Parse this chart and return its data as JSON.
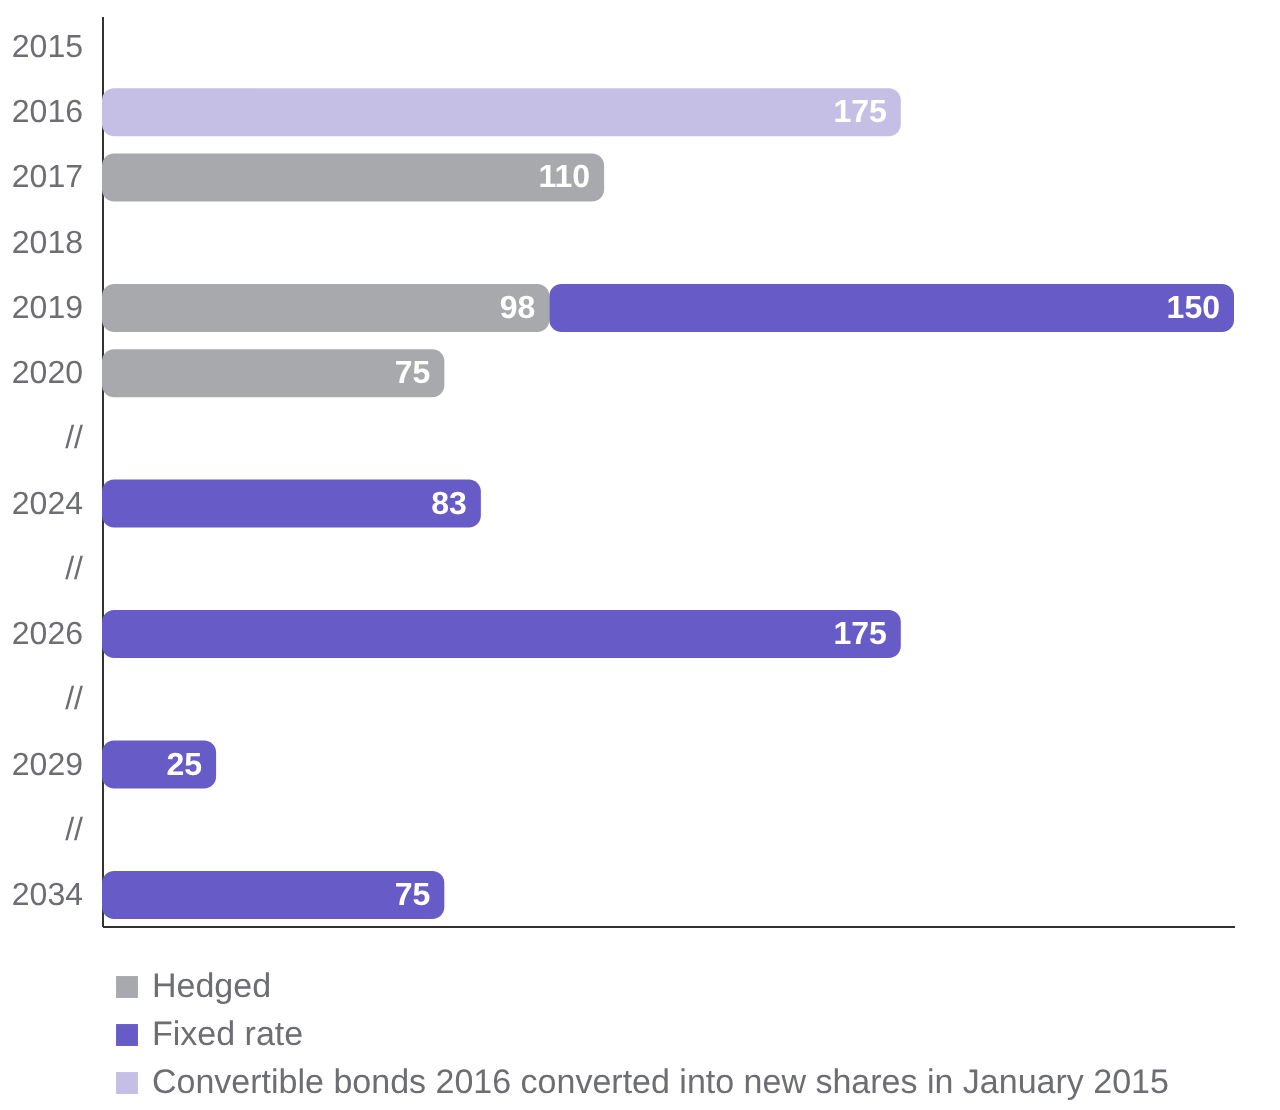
{
  "chart_data": {
    "type": "bar",
    "orientation": "horizontal",
    "stacked": true,
    "data_labels": true,
    "tick_labels": "y",
    "legend": "bottom",
    "categories": [
      "2015",
      "2016",
      "2017",
      "2018",
      "2019",
      "2020",
      "//",
      "2024",
      "//",
      "2026",
      "//",
      "2029",
      "//",
      "2034"
    ],
    "series": [
      {
        "name": "Hedged",
        "color": "#a7a9ac",
        "values": [
          null,
          null,
          110,
          null,
          98,
          75,
          null,
          null,
          null,
          null,
          null,
          null,
          null,
          null
        ]
      },
      {
        "name": "Fixed rate",
        "color": "#675bc7",
        "values": [
          null,
          null,
          null,
          null,
          150,
          null,
          null,
          83,
          null,
          175,
          null,
          25,
          null,
          75
        ]
      },
      {
        "name": "Convertible bonds 2016 converted into new shares in January 2015",
        "color": "#c5bfe6",
        "values": [
          null,
          175,
          null,
          null,
          null,
          null,
          null,
          null,
          null,
          null,
          null,
          null,
          null,
          null
        ]
      }
    ]
  }
}
